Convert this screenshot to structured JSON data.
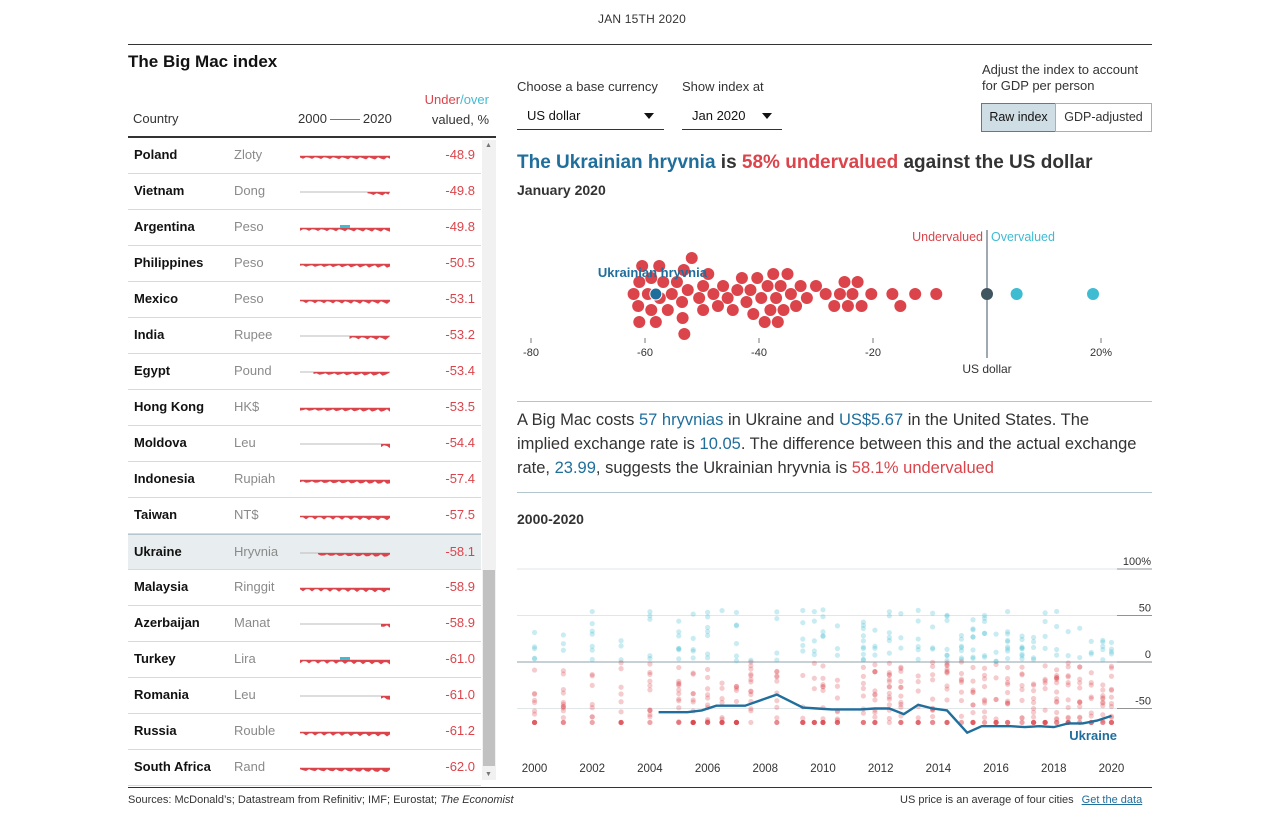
{
  "date": "JAN 15TH 2020",
  "title": "The Big Mac index",
  "table": {
    "col_country": "Country",
    "col_start": "2000",
    "col_end": "2020",
    "col_under": "Under",
    "col_slash": "/",
    "col_over": "over",
    "col_valued": "valued, %",
    "rows": [
      {
        "country": "Poland",
        "currency": "Zloty",
        "value": "-48.9",
        "spark_start": 2000
      },
      {
        "country": "Vietnam",
        "currency": "Dong",
        "value": "-49.8",
        "spark_start": 2015
      },
      {
        "country": "Argentina",
        "currency": "Peso",
        "value": "-49.8",
        "spark_start": 2000
      },
      {
        "country": "Philippines",
        "currency": "Peso",
        "value": "-50.5",
        "spark_start": 2000
      },
      {
        "country": "Mexico",
        "currency": "Peso",
        "value": "-53.1",
        "spark_start": 2000
      },
      {
        "country": "India",
        "currency": "Rupee",
        "value": "-53.2",
        "spark_start": 2011
      },
      {
        "country": "Egypt",
        "currency": "Pound",
        "value": "-53.4",
        "spark_start": 2003
      },
      {
        "country": "Hong Kong",
        "currency": "HK$",
        "value": "-53.5",
        "spark_start": 2000
      },
      {
        "country": "Moldova",
        "currency": "Leu",
        "value": "-54.4",
        "spark_start": 2018
      },
      {
        "country": "Indonesia",
        "currency": "Rupiah",
        "value": "-57.4",
        "spark_start": 2000
      },
      {
        "country": "Taiwan",
        "currency": "NT$",
        "value": "-57.5",
        "spark_start": 2000
      },
      {
        "country": "Ukraine",
        "currency": "Hryvnia",
        "value": "-58.1",
        "spark_start": 2004,
        "selected": true
      },
      {
        "country": "Malaysia",
        "currency": "Ringgit",
        "value": "-58.9",
        "spark_start": 2000
      },
      {
        "country": "Azerbaijan",
        "currency": "Manat",
        "value": "-58.9",
        "spark_start": 2018
      },
      {
        "country": "Turkey",
        "currency": "Lira",
        "value": "-61.0",
        "spark_start": 2000
      },
      {
        "country": "Romania",
        "currency": "Leu",
        "value": "-61.0",
        "spark_start": 2018
      },
      {
        "country": "Russia",
        "currency": "Rouble",
        "value": "-61.2",
        "spark_start": 2000
      },
      {
        "country": "South Africa",
        "currency": "Rand",
        "value": "-62.0",
        "spark_start": 2000
      }
    ]
  },
  "controls": {
    "base_label": "Choose a base currency",
    "base_value": "US dollar",
    "index_label": "Show index at",
    "index_value": "Jan 2020",
    "gdp_label_1": "Adjust the index to account",
    "gdp_label_2": "for GDP per person",
    "raw": "Raw index",
    "gdp": "GDP-adjusted"
  },
  "headline": {
    "currency": "The Ukrainian hryvnia",
    "is": " is ",
    "pct": "58% undervalued",
    "against": " against the US dollar"
  },
  "subhead": "January 2020",
  "para": {
    "p1": "A Big Mac costs ",
    "price_local": "57 hryvnias",
    "p2": " in Ukraine and ",
    "price_us": "US$5.67",
    "p3": " in the United States. The implied exchange rate is ",
    "implied": "10.05",
    "p4": ". The difference between this and the actual exchange rate, ",
    "actual": "23.99",
    "p5": ", suggests the Ukrainian hryvnia is ",
    "result": "58.1% undervalued"
  },
  "section2": "2000-2020",
  "colors": {
    "under": "#db444b",
    "over": "#3ebcd2",
    "highlight": "#1f6e9c",
    "base": "#3f5661"
  },
  "chart_data": [
    {
      "type": "scatter",
      "title": "",
      "label_under": "Undervalued",
      "label_over": "Overvalued",
      "highlight_label": "Ukrainian hryvnia",
      "base_label": "US dollar",
      "xticks": [
        "-80",
        "-60",
        "-40",
        "-20",
        "20%"
      ],
      "xlim": [
        -80,
        20
      ],
      "highlight_value": -58.1,
      "base_value": 0,
      "values": [
        -62,
        -61.2,
        -61,
        -61,
        -60.5,
        -59.5,
        -58.9,
        -58.9,
        -58.1,
        -57.5,
        -57.4,
        -56.8,
        -56,
        -55.3,
        -54.4,
        -53.5,
        -53.4,
        -53.2,
        -53.1,
        -52.5,
        -51.8,
        -50.5,
        -49.8,
        -49.8,
        -48.9,
        -48,
        -47.2,
        -46.3,
        -45.5,
        -44.6,
        -43.8,
        -43,
        -42.2,
        -41.5,
        -41,
        -40.3,
        -39.6,
        -39,
        -38.5,
        -38,
        -37.5,
        -37,
        -36.7,
        -36.2,
        -35.7,
        -35,
        -34.4,
        -33.5,
        -32.7,
        -31.6,
        -30,
        -28.3,
        -26.8,
        -25.8,
        -25,
        -24.4,
        -23.6,
        -22.7,
        -22,
        -20.3,
        -16.6,
        -15.2,
        -12.6,
        -8.9,
        5.2,
        18.6
      ]
    },
    {
      "type": "line",
      "title": "",
      "series_label": "Ukraine",
      "ylim": [
        -80,
        110
      ],
      "yticks": [
        "100%",
        "50",
        "0",
        "-50"
      ],
      "xticks": [
        "2000",
        "2002",
        "2004",
        "2006",
        "2008",
        "2010",
        "2012",
        "2014",
        "2016",
        "2018",
        "2020"
      ],
      "xlim": [
        1999.6,
        2020.4
      ],
      "series": [
        {
          "name": "Ukraine",
          "x": [
            2004.3,
            2005.3,
            2005.8,
            2006.3,
            2006.8,
            2007.3,
            2008.4,
            2009.3,
            2009.8,
            2010.3,
            2011.3,
            2011.8,
            2012.3,
            2012.8,
            2013.3,
            2013.8,
            2014.3,
            2015.0,
            2015.5,
            2016.0,
            2016.5,
            2017.0,
            2017.5,
            2018.0,
            2018.5,
            2019.0,
            2019.5,
            2020.0
          ],
          "values": [
            -54,
            -54,
            -52,
            -47,
            -47,
            -47,
            -35,
            -49,
            -50,
            -51,
            -51,
            -50,
            -50,
            -56,
            -46,
            -50,
            -52,
            -76,
            -69,
            -69,
            -69,
            -70,
            -69,
            -70,
            -66,
            -66,
            -63,
            -58
          ]
        }
      ],
      "cloud_note": "other countries shown as faint dots; red below zero, blue above"
    }
  ],
  "footer": {
    "sources": "Sources: McDonald’s; Datastream from Refinitiv; IMF; Eurostat; ",
    "econ": "The Economist",
    "note": "US price is an average of four cities",
    "link": "Get the data"
  }
}
